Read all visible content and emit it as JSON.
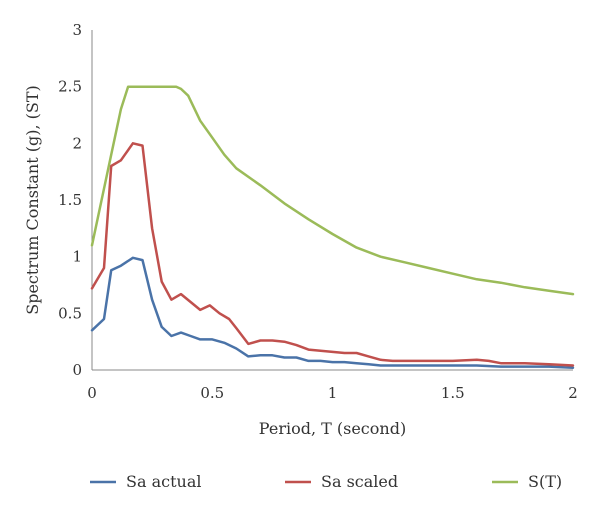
{
  "chart_data": {
    "type": "line",
    "xlabel": "Period, T (second)",
    "ylabel": "Spectrum Constant (g), (ST)",
    "xlim": [
      0,
      2
    ],
    "ylim": [
      0,
      3
    ],
    "x_ticks": [
      "0",
      "0.5",
      "1",
      "1.5",
      "2"
    ],
    "y_ticks": [
      "0",
      "0.5",
      "1",
      "1.5",
      "2",
      "2.5",
      "3"
    ],
    "grid": false,
    "legend_position": "bottom",
    "series": [
      {
        "name": "Sa actual",
        "color": "#4a73a8",
        "x": [
          0,
          0.05,
          0.08,
          0.12,
          0.17,
          0.21,
          0.25,
          0.29,
          0.33,
          0.37,
          0.41,
          0.45,
          0.5,
          0.55,
          0.6,
          0.65,
          0.7,
          0.75,
          0.8,
          0.85,
          0.9,
          0.95,
          1.0,
          1.05,
          1.1,
          1.15,
          1.2,
          1.3,
          1.4,
          1.5,
          1.6,
          1.7,
          1.8,
          1.9,
          2.0
        ],
        "values": [
          0.35,
          0.45,
          0.88,
          0.92,
          0.99,
          0.97,
          0.62,
          0.38,
          0.3,
          0.33,
          0.3,
          0.27,
          0.27,
          0.24,
          0.19,
          0.12,
          0.13,
          0.13,
          0.11,
          0.11,
          0.08,
          0.08,
          0.07,
          0.07,
          0.06,
          0.05,
          0.04,
          0.04,
          0.04,
          0.04,
          0.04,
          0.03,
          0.03,
          0.03,
          0.02
        ]
      },
      {
        "name": "Sa scaled",
        "color": "#c0504d",
        "x": [
          0,
          0.05,
          0.08,
          0.12,
          0.17,
          0.21,
          0.25,
          0.29,
          0.33,
          0.37,
          0.41,
          0.45,
          0.49,
          0.53,
          0.57,
          0.6,
          0.65,
          0.7,
          0.75,
          0.8,
          0.85,
          0.9,
          0.95,
          1.0,
          1.05,
          1.1,
          1.15,
          1.2,
          1.25,
          1.3,
          1.4,
          1.5,
          1.6,
          1.65,
          1.7,
          1.8,
          1.9,
          2.0
        ],
        "values": [
          0.72,
          0.9,
          1.8,
          1.85,
          2.0,
          1.98,
          1.25,
          0.78,
          0.62,
          0.67,
          0.6,
          0.53,
          0.57,
          0.5,
          0.45,
          0.37,
          0.23,
          0.26,
          0.26,
          0.25,
          0.22,
          0.18,
          0.17,
          0.16,
          0.15,
          0.15,
          0.12,
          0.09,
          0.08,
          0.08,
          0.08,
          0.08,
          0.09,
          0.08,
          0.06,
          0.06,
          0.05,
          0.04
        ]
      },
      {
        "name": "S(T)",
        "color": "#9bbb59",
        "x": [
          0,
          0.04,
          0.08,
          0.12,
          0.15,
          0.2,
          0.25,
          0.3,
          0.35,
          0.37,
          0.4,
          0.45,
          0.5,
          0.55,
          0.6,
          0.7,
          0.8,
          0.9,
          1.0,
          1.1,
          1.2,
          1.3,
          1.4,
          1.5,
          1.6,
          1.7,
          1.8,
          1.9,
          2.0
        ],
        "values": [
          1.1,
          1.5,
          1.9,
          2.3,
          2.5,
          2.5,
          2.5,
          2.5,
          2.5,
          2.48,
          2.42,
          2.2,
          2.05,
          1.9,
          1.78,
          1.63,
          1.47,
          1.33,
          1.2,
          1.08,
          1.0,
          0.95,
          0.9,
          0.85,
          0.8,
          0.77,
          0.73,
          0.7,
          0.67
        ]
      }
    ]
  }
}
